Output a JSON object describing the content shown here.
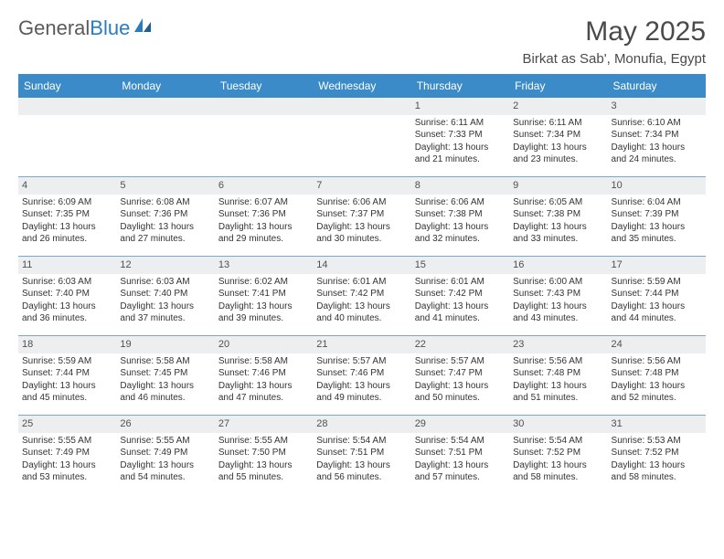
{
  "brand": {
    "part1": "General",
    "part2": "Blue"
  },
  "title": "May 2025",
  "location": "Birkat as Sab', Monufia, Egypt",
  "colors": {
    "header_bg": "#3b8bc8",
    "header_text": "#ffffff",
    "daynum_bg": "#eceeef",
    "border": "#7aa8cc",
    "text": "#333333",
    "title_text": "#4a4a4a"
  },
  "day_names": [
    "Sunday",
    "Monday",
    "Tuesday",
    "Wednesday",
    "Thursday",
    "Friday",
    "Saturday"
  ],
  "weeks": [
    [
      null,
      null,
      null,
      null,
      {
        "n": "1",
        "sr": "Sunrise: 6:11 AM",
        "ss": "Sunset: 7:33 PM",
        "dl": "Daylight: 13 hours and 21 minutes."
      },
      {
        "n": "2",
        "sr": "Sunrise: 6:11 AM",
        "ss": "Sunset: 7:34 PM",
        "dl": "Daylight: 13 hours and 23 minutes."
      },
      {
        "n": "3",
        "sr": "Sunrise: 6:10 AM",
        "ss": "Sunset: 7:34 PM",
        "dl": "Daylight: 13 hours and 24 minutes."
      }
    ],
    [
      {
        "n": "4",
        "sr": "Sunrise: 6:09 AM",
        "ss": "Sunset: 7:35 PM",
        "dl": "Daylight: 13 hours and 26 minutes."
      },
      {
        "n": "5",
        "sr": "Sunrise: 6:08 AM",
        "ss": "Sunset: 7:36 PM",
        "dl": "Daylight: 13 hours and 27 minutes."
      },
      {
        "n": "6",
        "sr": "Sunrise: 6:07 AM",
        "ss": "Sunset: 7:36 PM",
        "dl": "Daylight: 13 hours and 29 minutes."
      },
      {
        "n": "7",
        "sr": "Sunrise: 6:06 AM",
        "ss": "Sunset: 7:37 PM",
        "dl": "Daylight: 13 hours and 30 minutes."
      },
      {
        "n": "8",
        "sr": "Sunrise: 6:06 AM",
        "ss": "Sunset: 7:38 PM",
        "dl": "Daylight: 13 hours and 32 minutes."
      },
      {
        "n": "9",
        "sr": "Sunrise: 6:05 AM",
        "ss": "Sunset: 7:38 PM",
        "dl": "Daylight: 13 hours and 33 minutes."
      },
      {
        "n": "10",
        "sr": "Sunrise: 6:04 AM",
        "ss": "Sunset: 7:39 PM",
        "dl": "Daylight: 13 hours and 35 minutes."
      }
    ],
    [
      {
        "n": "11",
        "sr": "Sunrise: 6:03 AM",
        "ss": "Sunset: 7:40 PM",
        "dl": "Daylight: 13 hours and 36 minutes."
      },
      {
        "n": "12",
        "sr": "Sunrise: 6:03 AM",
        "ss": "Sunset: 7:40 PM",
        "dl": "Daylight: 13 hours and 37 minutes."
      },
      {
        "n": "13",
        "sr": "Sunrise: 6:02 AM",
        "ss": "Sunset: 7:41 PM",
        "dl": "Daylight: 13 hours and 39 minutes."
      },
      {
        "n": "14",
        "sr": "Sunrise: 6:01 AM",
        "ss": "Sunset: 7:42 PM",
        "dl": "Daylight: 13 hours and 40 minutes."
      },
      {
        "n": "15",
        "sr": "Sunrise: 6:01 AM",
        "ss": "Sunset: 7:42 PM",
        "dl": "Daylight: 13 hours and 41 minutes."
      },
      {
        "n": "16",
        "sr": "Sunrise: 6:00 AM",
        "ss": "Sunset: 7:43 PM",
        "dl": "Daylight: 13 hours and 43 minutes."
      },
      {
        "n": "17",
        "sr": "Sunrise: 5:59 AM",
        "ss": "Sunset: 7:44 PM",
        "dl": "Daylight: 13 hours and 44 minutes."
      }
    ],
    [
      {
        "n": "18",
        "sr": "Sunrise: 5:59 AM",
        "ss": "Sunset: 7:44 PM",
        "dl": "Daylight: 13 hours and 45 minutes."
      },
      {
        "n": "19",
        "sr": "Sunrise: 5:58 AM",
        "ss": "Sunset: 7:45 PM",
        "dl": "Daylight: 13 hours and 46 minutes."
      },
      {
        "n": "20",
        "sr": "Sunrise: 5:58 AM",
        "ss": "Sunset: 7:46 PM",
        "dl": "Daylight: 13 hours and 47 minutes."
      },
      {
        "n": "21",
        "sr": "Sunrise: 5:57 AM",
        "ss": "Sunset: 7:46 PM",
        "dl": "Daylight: 13 hours and 49 minutes."
      },
      {
        "n": "22",
        "sr": "Sunrise: 5:57 AM",
        "ss": "Sunset: 7:47 PM",
        "dl": "Daylight: 13 hours and 50 minutes."
      },
      {
        "n": "23",
        "sr": "Sunrise: 5:56 AM",
        "ss": "Sunset: 7:48 PM",
        "dl": "Daylight: 13 hours and 51 minutes."
      },
      {
        "n": "24",
        "sr": "Sunrise: 5:56 AM",
        "ss": "Sunset: 7:48 PM",
        "dl": "Daylight: 13 hours and 52 minutes."
      }
    ],
    [
      {
        "n": "25",
        "sr": "Sunrise: 5:55 AM",
        "ss": "Sunset: 7:49 PM",
        "dl": "Daylight: 13 hours and 53 minutes."
      },
      {
        "n": "26",
        "sr": "Sunrise: 5:55 AM",
        "ss": "Sunset: 7:49 PM",
        "dl": "Daylight: 13 hours and 54 minutes."
      },
      {
        "n": "27",
        "sr": "Sunrise: 5:55 AM",
        "ss": "Sunset: 7:50 PM",
        "dl": "Daylight: 13 hours and 55 minutes."
      },
      {
        "n": "28",
        "sr": "Sunrise: 5:54 AM",
        "ss": "Sunset: 7:51 PM",
        "dl": "Daylight: 13 hours and 56 minutes."
      },
      {
        "n": "29",
        "sr": "Sunrise: 5:54 AM",
        "ss": "Sunset: 7:51 PM",
        "dl": "Daylight: 13 hours and 57 minutes."
      },
      {
        "n": "30",
        "sr": "Sunrise: 5:54 AM",
        "ss": "Sunset: 7:52 PM",
        "dl": "Daylight: 13 hours and 58 minutes."
      },
      {
        "n": "31",
        "sr": "Sunrise: 5:53 AM",
        "ss": "Sunset: 7:52 PM",
        "dl": "Daylight: 13 hours and 58 minutes."
      }
    ]
  ]
}
